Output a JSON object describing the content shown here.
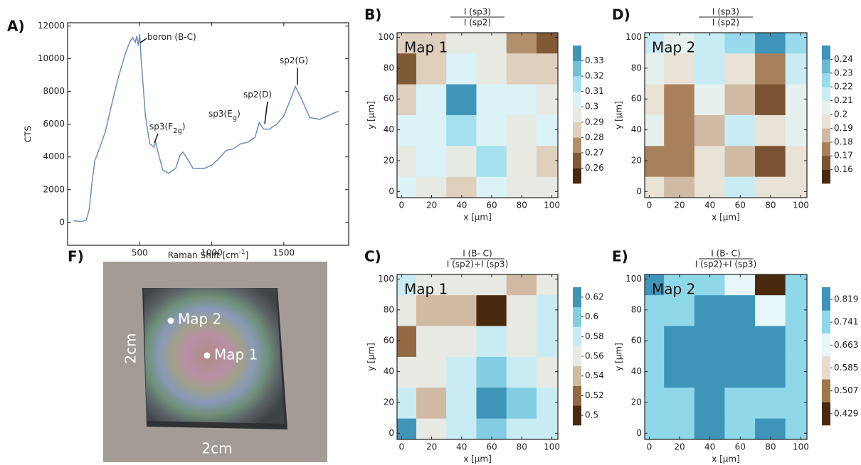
{
  "chart_data": [
    {
      "type": "line",
      "panel": "A)",
      "ylabel": "CTS",
      "xlabel": {
        "text": "Raman Shift [cm",
        "sup": "-1",
        "end": "]"
      },
      "color": "#6a8fc0",
      "x": [
        40,
        100,
        130,
        150,
        170,
        190,
        220,
        260,
        300,
        350,
        400,
        430,
        450,
        470,
        480,
        490,
        500,
        510,
        540,
        570,
        600,
        610,
        630,
        660,
        700,
        750,
        780,
        800,
        830,
        870,
        950,
        1000,
        1050,
        1100,
        1150,
        1200,
        1250,
        1300,
        1330,
        1360,
        1400,
        1450,
        1500,
        1550,
        1580,
        1620,
        1680,
        1750,
        1800,
        1880
      ],
      "values": [
        100,
        50,
        150,
        800,
        2500,
        3800,
        4500,
        5500,
        7000,
        8800,
        10300,
        11000,
        11300,
        11000,
        11400,
        10800,
        11500,
        10000,
        6500,
        4800,
        4600,
        4900,
        4200,
        3200,
        3000,
        3300,
        4100,
        4300,
        3900,
        3300,
        3300,
        3500,
        3900,
        4400,
        4500,
        4800,
        4900,
        5200,
        6100,
        5700,
        5700,
        6000,
        6500,
        7600,
        8300,
        7600,
        6400,
        6300,
        6500,
        6800
      ],
      "xlim": [
        0,
        1950
      ],
      "xticks": [
        500,
        1000,
        1500
      ],
      "ylim": [
        -1400,
        12200
      ],
      "yticks": [
        0,
        2000,
        4000,
        6000,
        8000,
        10000,
        12000
      ],
      "annotations": [
        {
          "text": "boron (B-C)"
        },
        {
          "text": "sp3(F",
          "sub": "2g",
          "end": ")"
        },
        {
          "text": "sp3(E",
          "sub": "g",
          "end": ")"
        },
        {
          "text": "sp2(D)"
        },
        {
          "text": "sp2(G)"
        }
      ]
    },
    {
      "type": "contour",
      "panel": "B)",
      "title": [
        "I (sp3)",
        "I (sp2)"
      ],
      "label": "Map 1",
      "xlabel": "x [µm]",
      "ylabel": "y [µm]",
      "xlim": [
        -3,
        104
      ],
      "ylim": [
        -4,
        103
      ],
      "xticks": [
        0,
        20,
        40,
        60,
        80,
        100
      ],
      "yticks": [
        0,
        20,
        40,
        60,
        80,
        100
      ],
      "x": [
        0,
        20,
        40,
        60,
        80,
        100
      ],
      "y": [
        0,
        20,
        40,
        60,
        80,
        100
      ],
      "z": [
        [
          0.31,
          0.3,
          0.29,
          0.31,
          0.3,
          0.3
        ],
        [
          0.3,
          0.31,
          0.3,
          0.32,
          0.3,
          0.29
        ],
        [
          0.31,
          0.31,
          0.32,
          0.31,
          0.3,
          0.31
        ],
        [
          0.29,
          0.31,
          0.33,
          0.31,
          0.31,
          0.3
        ],
        [
          0.26,
          0.28,
          0.31,
          0.3,
          0.29,
          0.29
        ],
        [
          0.28,
          0.29,
          0.3,
          0.3,
          0.27,
          0.26
        ]
      ],
      "zlim": [
        0.25,
        0.34
      ],
      "n_levels": 9,
      "zticks": [
        0.26,
        0.27,
        0.28,
        0.29,
        0.3,
        0.31,
        0.32,
        0.33
      ],
      "colors": [
        "#4a2a0e",
        "#a0764e",
        "#e8dccd",
        "#e6f6f9",
        "#8fd8ea",
        "#3f95b8"
      ]
    },
    {
      "type": "contour",
      "panel": "D)",
      "title": [
        "I (sp3)",
        "I (sp2)"
      ],
      "label": "Map 2",
      "xlabel": "x [µm]",
      "ylabel": "y [µm]",
      "xlim": [
        -3,
        104
      ],
      "ylim": [
        -4,
        103
      ],
      "xticks": [
        0,
        20,
        40,
        60,
        80,
        100
      ],
      "yticks": [
        0,
        20,
        40,
        60,
        80,
        100
      ],
      "x": [
        0,
        20,
        40,
        60,
        80,
        100
      ],
      "y": [
        0,
        20,
        40,
        60,
        80,
        100
      ],
      "z": [
        [
          0.19,
          0.18,
          0.19,
          0.21,
          0.19,
          0.19
        ],
        [
          0.17,
          0.17,
          0.19,
          0.18,
          0.16,
          0.19
        ],
        [
          0.2,
          0.17,
          0.18,
          0.21,
          0.19,
          0.2
        ],
        [
          0.19,
          0.17,
          0.2,
          0.18,
          0.16,
          0.2
        ],
        [
          0.2,
          0.19,
          0.21,
          0.19,
          0.17,
          0.21
        ],
        [
          0.21,
          0.2,
          0.21,
          0.22,
          0.24,
          0.22
        ]
      ],
      "zlim": [
        0.15,
        0.25
      ],
      "n_levels": 10,
      "zticks": [
        0.16,
        0.17,
        0.18,
        0.19,
        0.2,
        0.21,
        0.22,
        0.23,
        0.24
      ],
      "colors": [
        "#4a2a0e",
        "#a0764e",
        "#e8dccd",
        "#e6f6f9",
        "#8fd8ea",
        "#3f95b8"
      ]
    },
    {
      "type": "contour",
      "panel": "C)",
      "title": [
        "I (B- C)",
        "I (sp2)+I (sp3)"
      ],
      "label": "Map 1",
      "xlabel": "x [µm]",
      "ylabel": "y [µm]",
      "xlim": [
        -3,
        104
      ],
      "ylim": [
        -4,
        103
      ],
      "xticks": [
        0,
        20,
        40,
        60,
        80,
        100
      ],
      "yticks": [
        0,
        20,
        40,
        60,
        80,
        100
      ],
      "x": [
        0,
        20,
        40,
        60,
        80,
        100
      ],
      "y": [
        0,
        20,
        40,
        60,
        80,
        100
      ],
      "z": [
        [
          0.62,
          0.56,
          0.58,
          0.6,
          0.58,
          0.58
        ],
        [
          0.58,
          0.54,
          0.58,
          0.62,
          0.6,
          0.58
        ],
        [
          0.56,
          0.56,
          0.58,
          0.6,
          0.58,
          0.56
        ],
        [
          0.52,
          0.56,
          0.56,
          0.58,
          0.56,
          0.58
        ],
        [
          0.56,
          0.54,
          0.54,
          0.5,
          0.56,
          0.58
        ],
        [
          0.58,
          0.56,
          0.56,
          0.56,
          0.54,
          0.56
        ]
      ],
      "zlim": [
        0.49,
        0.63
      ],
      "n_levels": 7,
      "zticks": [
        0.5,
        0.52,
        0.54,
        0.56,
        0.58,
        0.6,
        0.62
      ],
      "colors": [
        "#4a2a0e",
        "#a0764e",
        "#e8dccd",
        "#e6f6f9",
        "#8fd8ea",
        "#3f95b8"
      ]
    },
    {
      "type": "contour",
      "panel": "E)",
      "title": [
        "I (B- C)",
        "I (sp2)+I (sp3)"
      ],
      "label": "Map 2",
      "xlabel": "x [µm]",
      "ylabel": "y [µm]",
      "xlim": [
        -3,
        104
      ],
      "ylim": [
        -4,
        103
      ],
      "xticks": [
        0,
        20,
        40,
        60,
        80,
        100
      ],
      "yticks": [
        0,
        20,
        40,
        60,
        80,
        100
      ],
      "x": [
        0,
        20,
        40,
        60,
        80,
        100
      ],
      "y": [
        0,
        20,
        40,
        60,
        80,
        100
      ],
      "z": [
        [
          0.78,
          0.76,
          0.8,
          0.76,
          0.82,
          0.78
        ],
        [
          0.76,
          0.78,
          0.82,
          0.78,
          0.78,
          0.76
        ],
        [
          0.78,
          0.8,
          0.84,
          0.8,
          0.82,
          0.78
        ],
        [
          0.76,
          0.8,
          0.84,
          0.84,
          0.8,
          0.76
        ],
        [
          0.74,
          0.76,
          0.8,
          0.84,
          0.66,
          0.74
        ],
        [
          0.8,
          0.78,
          0.76,
          0.7,
          0.43,
          0.74
        ]
      ],
      "zlim": [
        0.39,
        0.86
      ],
      "n_levels": 6,
      "zticks": [
        0.429,
        0.507,
        0.585,
        0.663,
        0.741,
        0.819
      ],
      "colors": [
        "#4a2a0e",
        "#a0764e",
        "#e8dccd",
        "#e6f6f9",
        "#8fd8ea",
        "#3f95b8"
      ]
    }
  ],
  "photo": {
    "panel": "F)",
    "points": [
      "Map 2",
      "Map 1"
    ],
    "side_labels": [
      "2cm",
      "2cm"
    ]
  }
}
